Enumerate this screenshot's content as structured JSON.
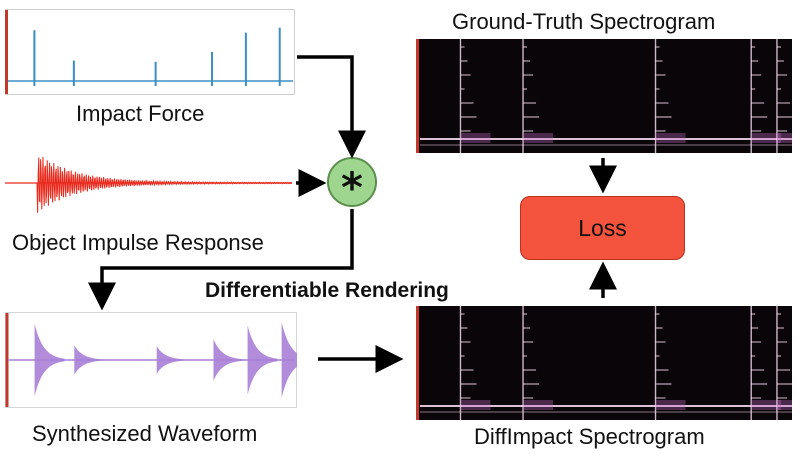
{
  "labels": {
    "impact_force": "Impact Force",
    "impulse_response": "Object Impulse Response",
    "synth_waveform": "Synthesized Waveform",
    "gt_spectrogram": "Ground-Truth Spectrogram",
    "diff_spectrogram": "DiffImpact Spectrogram",
    "differentiable_rendering": "Differentiable Rendering",
    "loss": "Loss",
    "convolution_symbol": "*"
  },
  "colors": {
    "impact_trace": "#3b8fc4",
    "impulse_trace": "#e8291c",
    "waveform_fill": "#a77fd6",
    "spectrogram_bg": "#0a0508",
    "spectrogram_line": "#f1d7ea",
    "loss_fill": "#f4533d",
    "conv_fill": "#9fd68f",
    "axis_edge": "#c0392b"
  },
  "impact_spikes": [
    {
      "t": 0.09,
      "amp": 0.82
    },
    {
      "t": 0.23,
      "amp": 0.33
    },
    {
      "t": 0.52,
      "amp": 0.31
    },
    {
      "t": 0.72,
      "amp": 0.47
    },
    {
      "t": 0.84,
      "amp": 0.78
    },
    {
      "t": 0.96,
      "amp": 0.86
    }
  ],
  "spectrogram_onsets": [
    0.11,
    0.28,
    0.64,
    0.9,
    0.97
  ],
  "icons": {
    "convolution": "asterisk-icon"
  }
}
